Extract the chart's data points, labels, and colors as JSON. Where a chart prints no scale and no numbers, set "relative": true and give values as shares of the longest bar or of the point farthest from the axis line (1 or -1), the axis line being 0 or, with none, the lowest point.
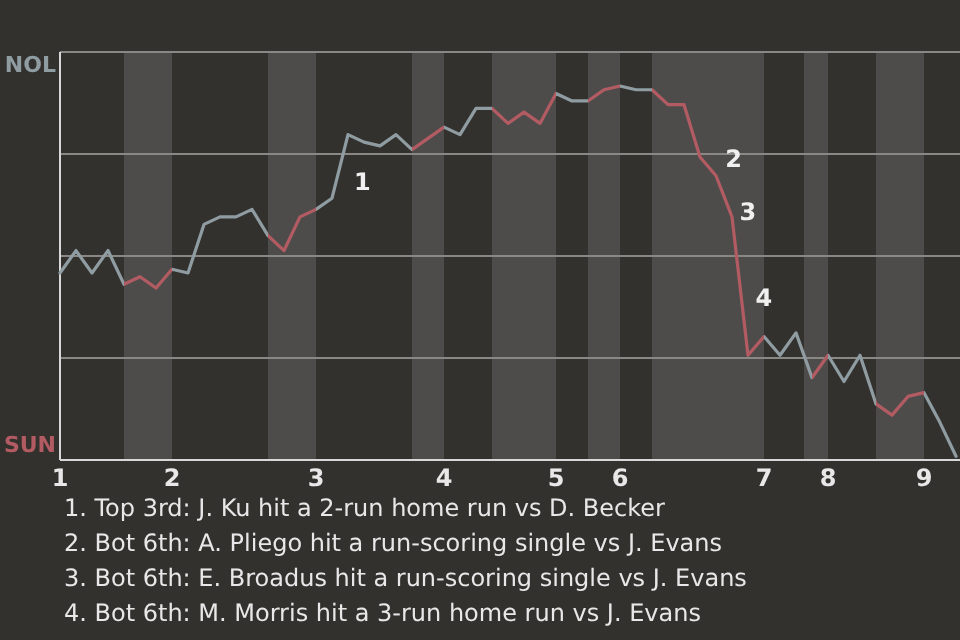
{
  "chart_data": {
    "type": "line",
    "relative": true,
    "grid": "y",
    "marker": "none",
    "line_style": "solid",
    "categories": [
      "1",
      null,
      null,
      null,
      null,
      null,
      null,
      "2",
      null,
      null,
      null,
      null,
      null,
      null,
      null,
      null,
      "3",
      null,
      null,
      null,
      null,
      null,
      null,
      null,
      "4",
      null,
      null,
      null,
      null,
      null,
      null,
      "5",
      null,
      null,
      null,
      "6",
      null,
      null,
      null,
      null,
      null,
      null,
      null,
      null,
      "7",
      null,
      null,
      null,
      "8",
      null,
      null,
      null,
      null,
      null,
      "9",
      null,
      null
    ],
    "values": [
      0.5,
      0.56,
      0.5,
      0.56,
      0.47,
      0.49,
      0.46,
      0.51,
      0.5,
      0.63,
      0.65,
      0.65,
      0.67,
      0.6,
      0.56,
      0.65,
      0.67,
      0.7,
      0.87,
      0.85,
      0.84,
      0.87,
      0.83,
      0.86,
      0.89,
      0.87,
      0.94,
      0.94,
      0.9,
      0.93,
      0.9,
      0.98,
      0.96,
      0.96,
      0.99,
      1.0,
      0.99,
      0.99,
      0.95,
      0.95,
      0.81,
      0.76,
      0.65,
      0.28,
      0.33,
      0.28,
      0.34,
      0.22,
      0.28,
      0.21,
      0.28,
      0.15,
      0.12,
      0.17,
      0.18,
      0.1,
      0.01
    ],
    "colors": [
      "#8f9ca1",
      "#8f9ca1",
      "#8f9ca1",
      "#8f9ca1",
      "#b35b62",
      "#b35b62",
      "#b35b62",
      "#8f9ca1",
      "#8f9ca1",
      "#8f9ca1",
      "#8f9ca1",
      "#8f9ca1",
      "#8f9ca1",
      "#b35b62",
      "#b35b62",
      "#b35b62",
      "#8f9ca1",
      "#8f9ca1",
      "#8f9ca1",
      "#8f9ca1",
      "#8f9ca1",
      "#8f9ca1",
      "#b35b62",
      "#b35b62",
      "#8f9ca1",
      "#8f9ca1",
      "#8f9ca1",
      "#b35b62",
      "#b35b62",
      "#b35b62",
      "#b35b62",
      "#8f9ca1",
      "#8f9ca1",
      "#b35b62",
      "#b35b62",
      "#8f9ca1",
      "#8f9ca1",
      "#b35b62",
      "#b35b62",
      "#b35b62",
      "#b35b62",
      "#b35b62",
      "#b35b62",
      "#b35b62",
      "#8f9ca1",
      "#8f9ca1",
      "#8f9ca1",
      "#b35b62",
      "#8f9ca1",
      "#8f9ca1",
      "#8f9ca1",
      "#b35b62",
      "#b35b62",
      "#b35b62",
      "#8f9ca1",
      "#8f9ca1",
      "#8f9ca1"
    ],
    "annotations": [
      "NOL",
      "SUN",
      "1",
      "2",
      "3",
      "4",
      "1. Top 3rd: J. Ku hit a 2-run home run vs D. Becker",
      "2. Bot 6th: A. Pliego hit a run-scoring single vs J. Evans",
      "3. Bot 6th: E. Broadus hit a run-scoring single vs J. Evans",
      "4. Bot 6th: M. Morris hit a 3-run home run vs J. Evans"
    ]
  }
}
